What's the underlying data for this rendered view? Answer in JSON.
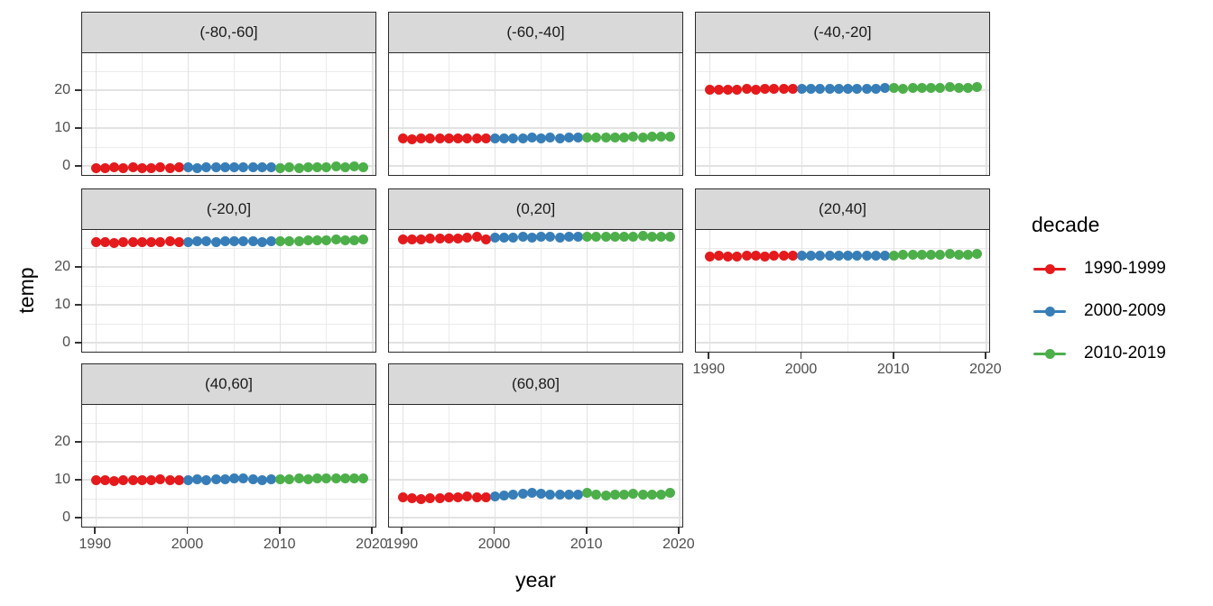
{
  "figure": {
    "y_axis_title": "temp",
    "x_axis_title": "year"
  },
  "legend": {
    "title": "decade",
    "items": [
      {
        "label": "1990-1999",
        "color": "#E41A1C"
      },
      {
        "label": "2000-2009",
        "color": "#377EB8"
      },
      {
        "label": "2010-2019",
        "color": "#4DAF4A"
      }
    ]
  },
  "chart_data": {
    "type": "scatter",
    "title": "",
    "xlabel": "year",
    "ylabel": "temp",
    "legend_title": "decade",
    "legend_position": "right",
    "grid": true,
    "facet_layout": "3 columns x 3 rows, 8 facets of latitude bands",
    "x_start_year": 1990,
    "x_ticks": [
      1990,
      2000,
      2010,
      2020
    ],
    "x_minor_ticks": [
      1995,
      2005,
      2015
    ],
    "y_ticks": [
      0,
      10,
      20
    ],
    "y_minor_ticks": [
      5,
      15,
      25
    ],
    "x_range": [
      1988.5,
      2020.5
    ],
    "y_range": [
      -2.6,
      29.8
    ],
    "series": [
      {
        "name": "1990-1999",
        "color": "#E41A1C",
        "year_span": [
          1990,
          1999
        ]
      },
      {
        "name": "2000-2009",
        "color": "#377EB8",
        "year_span": [
          2000,
          2009
        ]
      },
      {
        "name": "2010-2019",
        "color": "#4DAF4A",
        "year_span": [
          2010,
          2019
        ]
      }
    ],
    "facets": [
      {
        "label": "(-80,-60]",
        "col": 0,
        "row": 0,
        "show_y_axis": true,
        "show_x_axis": false,
        "values": [
          -0.5,
          -0.6,
          -0.4,
          -0.5,
          -0.4,
          -0.6,
          -0.5,
          -0.4,
          -0.5,
          -0.4,
          -0.4,
          -0.5,
          -0.4,
          -0.3,
          -0.4,
          -0.3,
          -0.4,
          -0.4,
          -0.3,
          -0.4,
          -0.5,
          -0.4,
          -0.5,
          -0.4,
          -0.3,
          -0.4,
          -0.2,
          -0.3,
          -0.1,
          -0.3
        ]
      },
      {
        "label": "(-60,-40]",
        "col": 1,
        "row": 0,
        "show_y_axis": false,
        "show_x_axis": false,
        "values": [
          7.2,
          7.1,
          7.2,
          7.2,
          7.3,
          7.2,
          7.3,
          7.2,
          7.3,
          7.3,
          7.4,
          7.3,
          7.4,
          7.4,
          7.5,
          7.4,
          7.5,
          7.4,
          7.5,
          7.5,
          7.5,
          7.6,
          7.5,
          7.6,
          7.6,
          7.7,
          7.6,
          7.7,
          7.7,
          7.8
        ]
      },
      {
        "label": "(-40,-20]",
        "col": 2,
        "row": 0,
        "show_y_axis": false,
        "show_x_axis": false,
        "values": [
          20.2,
          20.2,
          20.1,
          20.2,
          20.3,
          20.2,
          20.3,
          20.3,
          20.4,
          20.3,
          20.4,
          20.4,
          20.5,
          20.4,
          20.5,
          20.5,
          20.4,
          20.5,
          20.5,
          20.6,
          20.6,
          20.5,
          20.6,
          20.7,
          20.6,
          20.7,
          20.8,
          20.7,
          20.7,
          20.8
        ]
      },
      {
        "label": "(-20,0]",
        "col": 0,
        "row": 1,
        "show_y_axis": true,
        "show_x_axis": false,
        "values": [
          26.5,
          26.5,
          26.4,
          26.5,
          26.6,
          26.6,
          26.5,
          26.7,
          26.9,
          26.6,
          26.7,
          26.8,
          26.8,
          26.7,
          26.8,
          26.8,
          26.9,
          26.8,
          26.7,
          26.9,
          26.9,
          26.8,
          26.9,
          27.0,
          27.0,
          27.1,
          27.3,
          27.1,
          27.0,
          27.2
        ]
      },
      {
        "label": "(0,20]",
        "col": 1,
        "row": 1,
        "show_y_axis": false,
        "show_x_axis": false,
        "values": [
          27.4,
          27.4,
          27.3,
          27.5,
          27.5,
          27.6,
          27.5,
          27.7,
          27.9,
          27.4,
          27.7,
          27.8,
          27.8,
          27.9,
          27.8,
          27.9,
          27.9,
          27.8,
          27.9,
          28.0,
          28.0,
          27.9,
          28.0,
          28.0,
          28.1,
          28.1,
          28.2,
          28.0,
          28.1,
          28.1
        ]
      },
      {
        "label": "(20,40]",
        "col": 2,
        "row": 1,
        "show_y_axis": false,
        "show_x_axis": true,
        "values": [
          22.8,
          22.9,
          22.7,
          22.8,
          22.9,
          22.9,
          22.8,
          23.0,
          23.1,
          22.9,
          23.0,
          23.1,
          23.0,
          23.1,
          23.0,
          23.1,
          23.1,
          23.0,
          23.1,
          23.1,
          23.1,
          23.2,
          23.2,
          23.3,
          23.2,
          23.3,
          23.4,
          23.3,
          23.3,
          23.4
        ]
      },
      {
        "label": "(40,60]",
        "col": 0,
        "row": 2,
        "show_y_axis": true,
        "show_x_axis": true,
        "values": [
          9.8,
          9.9,
          9.7,
          9.8,
          9.9,
          10.0,
          9.9,
          10.1,
          10.0,
          9.9,
          10.0,
          10.1,
          10.0,
          10.2,
          10.1,
          10.3,
          10.4,
          10.2,
          10.0,
          10.1,
          10.2,
          10.1,
          10.3,
          10.2,
          10.4,
          10.5,
          10.3,
          10.4,
          10.3,
          10.5
        ]
      },
      {
        "label": "(60,80]",
        "col": 1,
        "row": 2,
        "show_y_axis": false,
        "show_x_axis": true,
        "values": [
          5.3,
          5.2,
          5.0,
          5.1,
          5.2,
          5.3,
          5.5,
          5.6,
          5.5,
          5.4,
          5.7,
          5.9,
          6.1,
          6.4,
          6.5,
          6.3,
          6.1,
          6.0,
          6.1,
          6.0,
          6.5,
          6.2,
          5.9,
          6.0,
          6.1,
          6.4,
          6.1,
          6.2,
          6.2,
          6.5
        ]
      }
    ]
  }
}
